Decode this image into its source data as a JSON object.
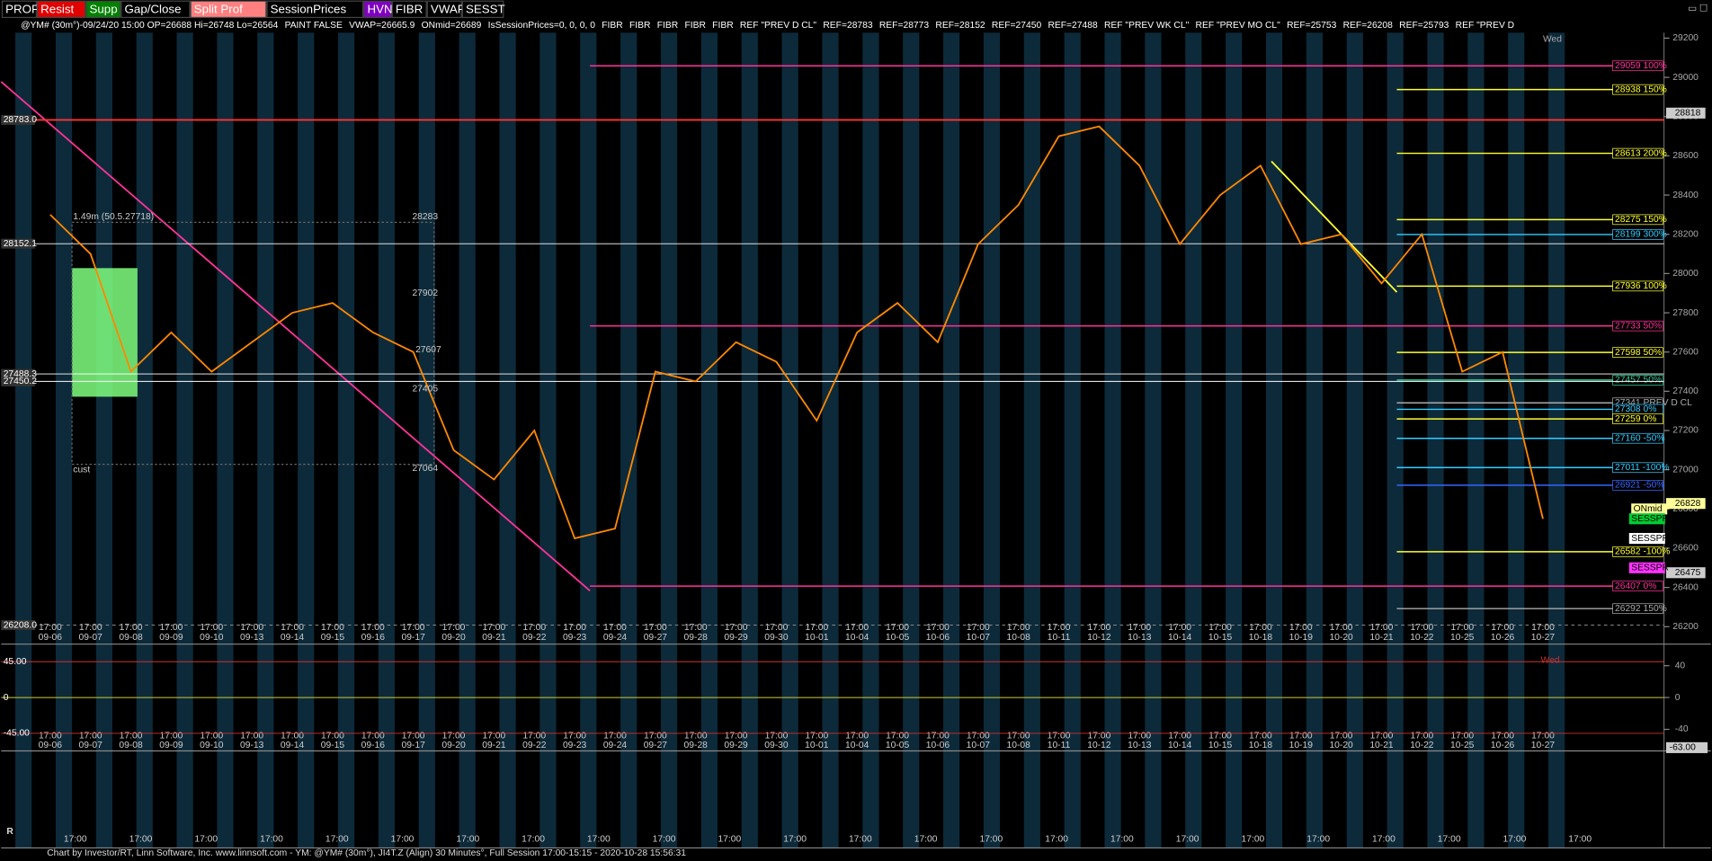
{
  "toolbar": [
    {
      "label": "PROF",
      "bg": "#000000",
      "fg": "#ffffff"
    },
    {
      "label": "Resist",
      "bg": "#e00000",
      "fg": "#ffffff"
    },
    {
      "label": "Supp",
      "bg": "#008000",
      "fg": "#ffffff"
    },
    {
      "label": "Gap/Close",
      "bg": "#000000",
      "fg": "#ffffff"
    },
    {
      "label": "Split Prof",
      "bg": "#ff8080",
      "fg": "#ffffff"
    },
    {
      "label": "SessionPrices",
      "bg": "#000000",
      "fg": "#ffffff"
    },
    {
      "label": "HVN",
      "bg": "#8000c0",
      "fg": "#ffffff"
    },
    {
      "label": "FIBR",
      "bg": "#000000",
      "fg": "#ffffff"
    },
    {
      "label": "VWAP",
      "bg": "#000000",
      "fg": "#ffffff"
    },
    {
      "label": "SESST",
      "bg": "#000000",
      "fg": "#ffffff"
    }
  ],
  "header": [
    "@YM# (30m°)-09/24/20 15:00 OP=26688 Hi=26748 Lo=26564",
    "PAINT FALSE",
    "VWAP=26665.9",
    "ONmid=26689",
    "IsSessionPrices=0, 0, 0, 0",
    "FIBR",
    "FIBR",
    "FIBR",
    "FIBR",
    "FIBR",
    "REF \"PREV D CL\"",
    "REF=28783",
    "REF=28773",
    "REF=28152",
    "REF=27450",
    "REF=27488",
    "REF \"PREV WK CL\"",
    "REF \"PREV MO CL\"",
    "REF=25753",
    "REF=26208",
    "REF=25793",
    "REF \"PREV D"
  ],
  "price_chart": {
    "ylim": [
      26200,
      29200
    ],
    "yticks": [
      26200,
      26400,
      26600,
      26800,
      27000,
      27200,
      27400,
      27600,
      27800,
      28000,
      28200,
      28400,
      28600,
      28800,
      29000,
      29200
    ],
    "time_label": "17:00",
    "dates": [
      "09-06",
      "09-07",
      "09-08",
      "09-09",
      "09-10",
      "09-13",
      "09-14",
      "09-15",
      "09-16",
      "09-17",
      "09-20",
      "09-21",
      "09-22",
      "09-23",
      "09-24",
      "09-27",
      "09-28",
      "09-29",
      "09-30",
      "10-01",
      "10-04",
      "10-05",
      "10-06",
      "10-07",
      "10-08",
      "10-11",
      "10-12",
      "10-13",
      "10-14",
      "10-15",
      "10-18",
      "10-19",
      "10-20",
      "10-21",
      "10-22",
      "10-25",
      "10-26",
      "10-27"
    ],
    "closes": [
      28300,
      28100,
      27500,
      27700,
      27500,
      27650,
      27800,
      27850,
      27700,
      27600,
      27100,
      26950,
      27200,
      26650,
      26700,
      27500,
      27450,
      27650,
      27550,
      27250,
      27700,
      27850,
      27650,
      28150,
      28350,
      28700,
      28750,
      28550,
      28150,
      28400,
      28550,
      28150,
      28200,
      27950,
      28200,
      27500,
      27600,
      26750
    ],
    "line_color": "#ff8800",
    "levels": [
      {
        "label": "29059 100%",
        "price": 29059,
        "color": "#ff3399"
      },
      {
        "label": "28938 150%",
        "price": 28938,
        "color": "#ffff33"
      },
      {
        "label": "28613 200%",
        "price": 28613,
        "color": "#ffff33"
      },
      {
        "label": "28275 150%",
        "price": 28275,
        "color": "#ffff33"
      },
      {
        "label": "28199 300%",
        "price": 28199,
        "color": "#33ccff"
      },
      {
        "label": "27936 100%",
        "price": 27936,
        "color": "#ffff33"
      },
      {
        "label": "27733 50%",
        "price": 27733,
        "color": "#ff3399"
      },
      {
        "label": "27598 50%",
        "price": 27598,
        "color": "#ffff33"
      },
      {
        "label": "27457 50%",
        "price": 27457,
        "color": "#33cc99"
      },
      {
        "label": "27341 PREV D CL",
        "price": 27341,
        "color": "#aaaaaa"
      },
      {
        "label": "27308 0%",
        "price": 27308,
        "color": "#33ccff"
      },
      {
        "label": "27259 0%",
        "price": 27259,
        "color": "#ffff33"
      },
      {
        "label": "27160 -50%",
        "price": 27160,
        "color": "#33ccff"
      },
      {
        "label": "27011 -100%",
        "price": 27011,
        "color": "#33ccff"
      },
      {
        "label": "26921 -50%",
        "price": 26921,
        "color": "#3366ff"
      },
      {
        "label": "26582 -100%",
        "price": 26582,
        "color": "#ffff33"
      },
      {
        "label": "26407 0%",
        "price": 26407,
        "color": "#ff3399"
      },
      {
        "label": "26292 150%",
        "price": 26292,
        "color": "#aaaaaa"
      }
    ],
    "left_labels": [
      {
        "label": "28783.0",
        "price": 28783
      },
      {
        "label": "28152.1",
        "price": 28152.1
      },
      {
        "label": "27488.3",
        "price": 27488.3
      },
      {
        "label": "27450.2",
        "price": 27450.2
      },
      {
        "label": "26208.0",
        "price": 26208
      }
    ],
    "highlights": [
      {
        "label": "28818",
        "price": 28818,
        "color": "#cccccc"
      },
      {
        "label": "26828",
        "price": 26828,
        "color": "#ffff99"
      },
      {
        "label": "26475",
        "price": 26475,
        "color": "#cccccc"
      }
    ],
    "profile": {
      "volume": "1.49m (50.5.27718)",
      "high": "28283",
      "mid1": "27902",
      "mid2": "27607",
      "mid3": "27405",
      "low": "27064",
      "name": "cust"
    },
    "tags": [
      "ONmid",
      "SESSPR",
      "SESSPR",
      "SESSPR",
      "Wed"
    ]
  },
  "indicator": {
    "ylim": [
      -63,
      63
    ],
    "left_ticks": [
      {
        "value": 45,
        "label": "45.00"
      },
      0,
      {
        "value": -45,
        "label": "-45.00"
      }
    ],
    "right_ticks": [
      40,
      0,
      -40
    ],
    "current": {
      "value": -63,
      "label": "-63.00"
    },
    "tag": "Wed"
  },
  "footer": "Chart by Investor/RT, Linn Software, Inc. www.linnsoft.com - YM: @YM# (30m°), JI4T.Z (Align) 30 Minutes°, Full Session 17:00-15:15 - 2020-10-28 15:56:31"
}
